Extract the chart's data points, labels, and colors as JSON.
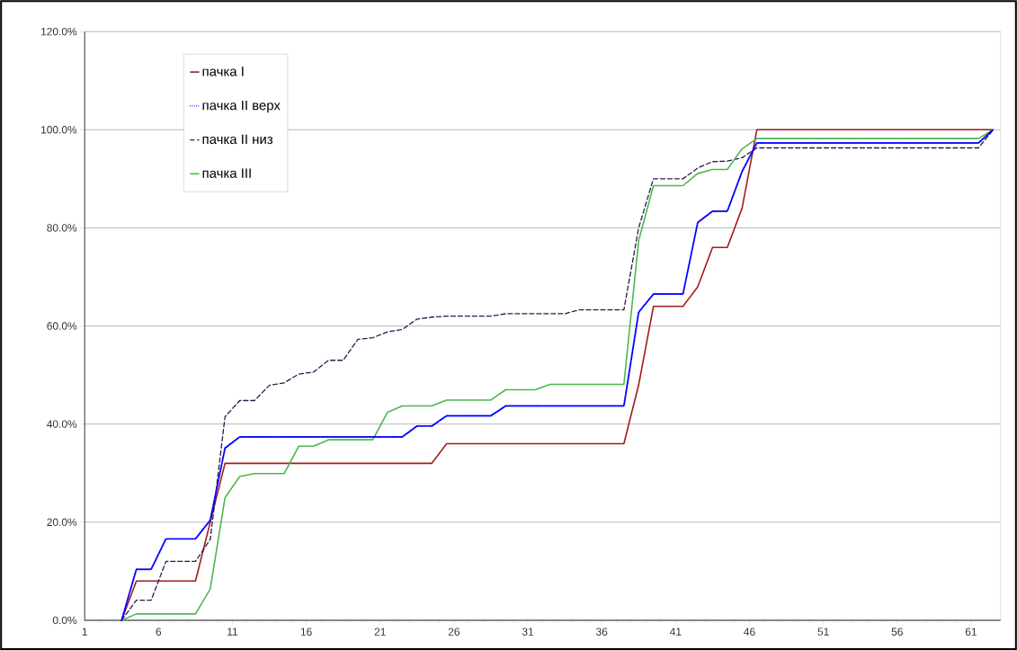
{
  "chart_data": {
    "type": "line",
    "x": [
      3.5,
      4.5,
      5.5,
      6.5,
      7.5,
      8.5,
      9.5,
      10.5,
      11.5,
      12.5,
      13.5,
      14.5,
      15.5,
      16.5,
      17.5,
      18.5,
      19.5,
      20.5,
      21.5,
      22.5,
      23.5,
      24.5,
      25.5,
      26.5,
      27.5,
      28.5,
      29.5,
      30.5,
      31.5,
      32.5,
      33.5,
      34.5,
      35.5,
      36.5,
      37.5,
      38.5,
      39.5,
      40.5,
      41.5,
      42.5,
      43.5,
      44.5,
      45.5,
      46.5,
      47.5,
      48.5,
      49.5,
      50.5,
      51.5,
      52.5,
      53.5,
      54.5,
      55.5,
      56.5,
      57.5,
      58.5,
      59.5,
      60.5,
      61.5,
      62.5
    ],
    "series": [
      {
        "name": "пачка I",
        "color": "#a01c1c",
        "line_style": "solid",
        "values": [
          0,
          8,
          8,
          8,
          8,
          8,
          20,
          32,
          32,
          32,
          32,
          32,
          32,
          32,
          32,
          32,
          32,
          32,
          32,
          32,
          32,
          32,
          36,
          36,
          36,
          36,
          36,
          36,
          36,
          36,
          36,
          36,
          36,
          36,
          36,
          48,
          64,
          64,
          64,
          68,
          76,
          76,
          84,
          100,
          100,
          100,
          100,
          100,
          100,
          100,
          100,
          100,
          100,
          100,
          100,
          100,
          100,
          100,
          100,
          100
        ]
      },
      {
        "name": "пачка II верх",
        "color": "#0000ff",
        "line_style": "dotted",
        "values": [
          0,
          10.4,
          10.4,
          16.6,
          16.6,
          16.6,
          20.4,
          35.1,
          37.4,
          37.4,
          37.4,
          37.4,
          37.4,
          37.4,
          37.4,
          37.4,
          37.4,
          37.4,
          37.4,
          37.4,
          39.6,
          39.6,
          41.7,
          41.7,
          41.7,
          41.7,
          43.7,
          43.7,
          43.7,
          43.7,
          43.7,
          43.7,
          43.7,
          43.7,
          43.7,
          62.8,
          66.5,
          66.5,
          66.5,
          81.1,
          83.4,
          83.4,
          91.5,
          97.3,
          97.3,
          97.3,
          97.3,
          97.3,
          97.3,
          97.3,
          97.3,
          97.3,
          97.3,
          97.3,
          97.3,
          97.3,
          97.3,
          97.3,
          97.3,
          100
        ]
      },
      {
        "name": "пачка II низ",
        "color": "#2a1a4a",
        "line_style": "dashed",
        "values": [
          0,
          4.1,
          4.1,
          12,
          12,
          12,
          16.5,
          41.5,
          44.8,
          44.8,
          47.9,
          48.4,
          50.2,
          50.6,
          53,
          53,
          57.3,
          57.6,
          58.8,
          59.3,
          61.4,
          61.8,
          62,
          62,
          62,
          62,
          62.5,
          62.5,
          62.5,
          62.5,
          62.5,
          63.3,
          63.3,
          63.3,
          63.3,
          80,
          90,
          90,
          90,
          92.2,
          93.5,
          93.6,
          94.3,
          96.3,
          96.3,
          96.3,
          96.3,
          96.3,
          96.3,
          96.3,
          96.3,
          96.3,
          96.3,
          96.3,
          96.3,
          96.3,
          96.3,
          96.3,
          96.3,
          100
        ]
      },
      {
        "name": "пачка III",
        "color": "#4cb84c",
        "line_style": "solid",
        "values": [
          0,
          1.3,
          1.3,
          1.3,
          1.3,
          1.3,
          6.4,
          25,
          29.3,
          29.9,
          29.9,
          29.9,
          35.5,
          35.5,
          36.8,
          36.8,
          36.8,
          36.8,
          42.4,
          43.7,
          43.7,
          43.7,
          44.9,
          44.9,
          44.9,
          44.9,
          47,
          47,
          47,
          48.1,
          48.1,
          48.1,
          48.1,
          48.1,
          48.1,
          77.4,
          88.6,
          88.6,
          88.6,
          91.1,
          91.9,
          91.9,
          96.1,
          98.2,
          98.2,
          98.2,
          98.2,
          98.2,
          98.2,
          98.2,
          98.2,
          98.2,
          98.2,
          98.2,
          98.2,
          98.2,
          98.2,
          98.2,
          98.2,
          100
        ]
      }
    ],
    "xlim": [
      1,
      63
    ],
    "xticks": [
      1,
      6,
      11,
      16,
      21,
      26,
      31,
      36,
      41,
      46,
      51,
      56,
      61
    ],
    "ylim": [
      0,
      120
    ],
    "yticks": [
      {
        "value": 0,
        "label": "0.0%"
      },
      {
        "value": 20,
        "label": "20.0%"
      },
      {
        "value": 40,
        "label": "40.0%"
      },
      {
        "value": 60,
        "label": "60.0%"
      },
      {
        "value": 80,
        "label": "80.0%"
      },
      {
        "value": 100,
        "label": "100.0%"
      },
      {
        "value": 120,
        "label": "120.0%"
      }
    ],
    "grid": "y",
    "legend": "top left"
  }
}
